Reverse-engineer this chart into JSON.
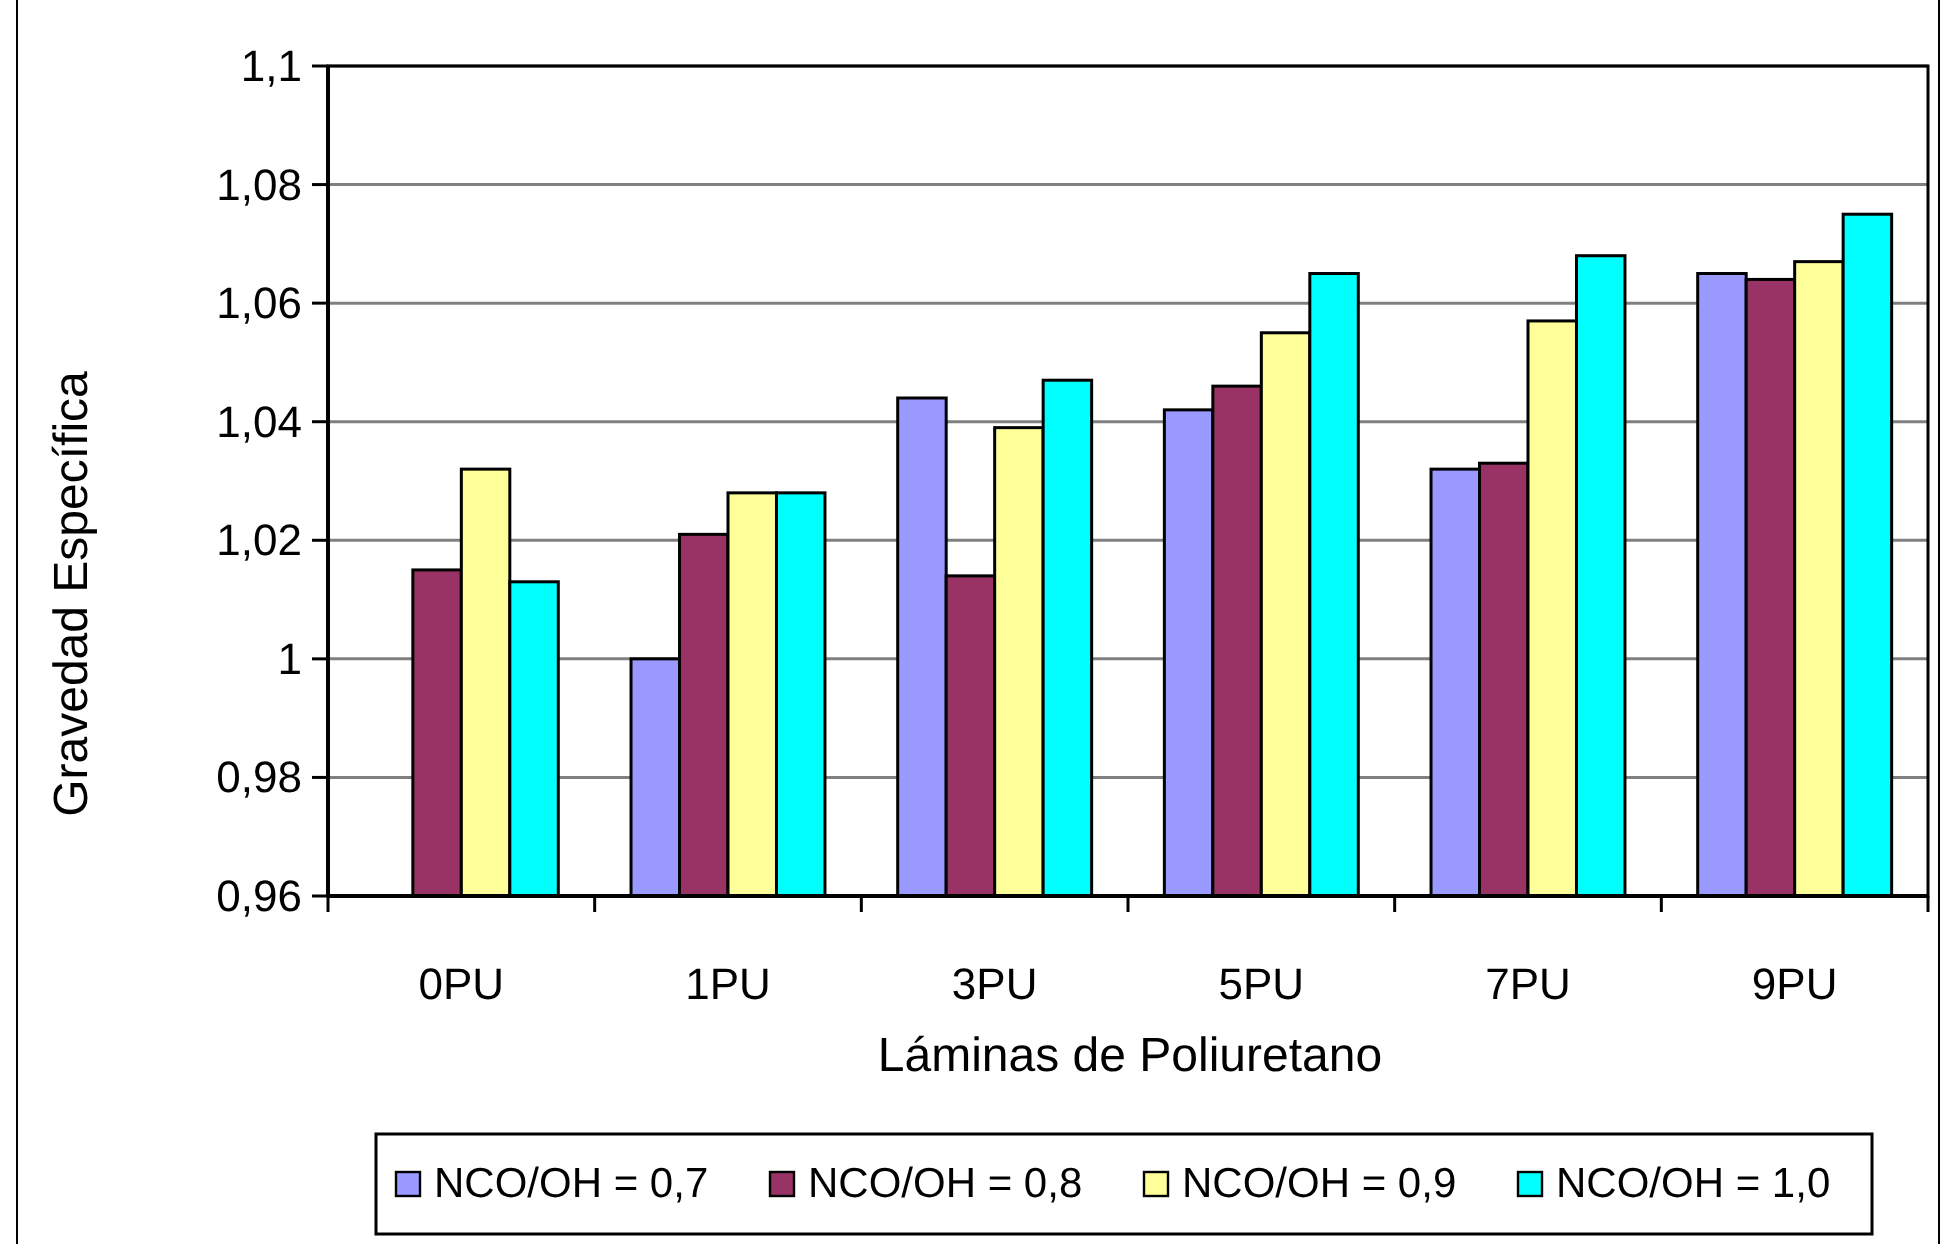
{
  "chart_data": {
    "type": "bar",
    "xlabel": "Láminas de Poliuretano",
    "ylabel": "Gravedad Específica",
    "categories": [
      "0PU",
      "1PU",
      "3PU",
      "5PU",
      "7PU",
      "9PU"
    ],
    "series": [
      {
        "name": "NCO/OH = 0,7",
        "color": "#9999ff",
        "values": [
          null,
          1.0,
          1.044,
          1.042,
          1.032,
          1.065
        ]
      },
      {
        "name": "NCO/OH = 0,8",
        "color": "#993366",
        "values": [
          1.015,
          1.021,
          1.014,
          1.046,
          1.033,
          1.064
        ]
      },
      {
        "name": "NCO/OH = 0,9",
        "color": "#ffff99",
        "values": [
          1.032,
          1.028,
          1.039,
          1.055,
          1.057,
          1.067
        ]
      },
      {
        "name": "NCO/OH = 1,0",
        "color": "#00ffff",
        "values": [
          1.013,
          1.028,
          1.047,
          1.065,
          1.068,
          1.075
        ]
      }
    ],
    "ylim": [
      0.96,
      1.1
    ],
    "yticks": [
      {
        "value": 0.96,
        "label": "0,96"
      },
      {
        "value": 0.98,
        "label": "0,98"
      },
      1,
      {
        "value": 1.02,
        "label": "1,02"
      },
      {
        "value": 1.04,
        "label": "1,04"
      },
      {
        "value": 1.06,
        "label": "1,06"
      },
      {
        "value": 1.08,
        "label": "1,08"
      },
      {
        "value": 1.1,
        "label": "1,1"
      }
    ],
    "grid": "y",
    "legend": "bottom"
  }
}
